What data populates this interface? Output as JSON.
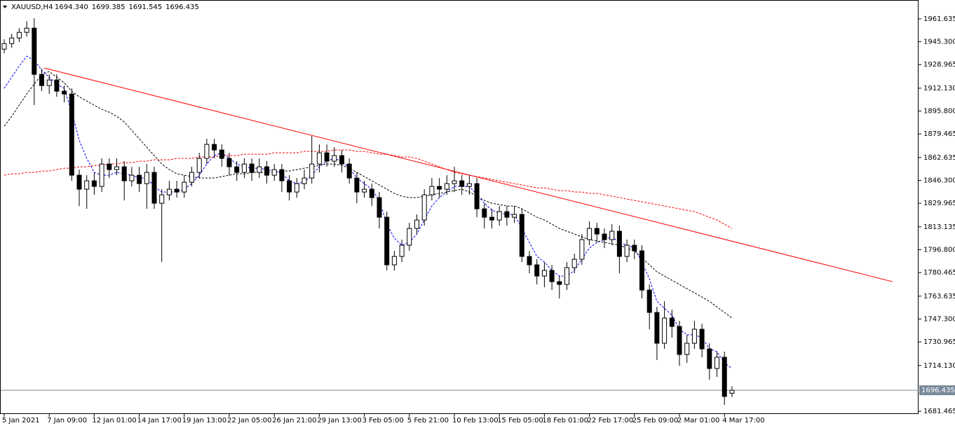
{
  "chart_data": {
    "type": "candlestick",
    "title": "XAUUSD,H4",
    "header_values": [
      "1694.340",
      "1699.385",
      "1691.545",
      "1696.435"
    ],
    "categories": [
      "5 Jan 2021",
      null,
      null,
      null,
      null,
      null,
      "7 Jan 09:00",
      null,
      null,
      null,
      null,
      null,
      "12 Jan 01:00",
      null,
      null,
      null,
      null,
      null,
      "14 Jan 17:00",
      null,
      null,
      null,
      null,
      null,
      "19 Jan 13:00",
      null,
      null,
      null,
      null,
      null,
      "22 Jan 05:00",
      null,
      null,
      null,
      null,
      null,
      "26 Jan 21:00",
      null,
      null,
      null,
      null,
      null,
      "29 Jan 13:00",
      null,
      null,
      null,
      null,
      null,
      "3 Feb 05:00",
      null,
      null,
      null,
      null,
      null,
      "5 Feb 21:00",
      null,
      null,
      null,
      null,
      null,
      "10 Feb 13:00",
      null,
      null,
      null,
      null,
      null,
      "15 Feb 05:00",
      null,
      null,
      null,
      null,
      null,
      "18 Feb 01:00",
      null,
      null,
      null,
      null,
      null,
      "22 Feb 17:00",
      null,
      null,
      null,
      null,
      null,
      "25 Feb 09:00",
      null,
      null,
      null,
      null,
      null,
      "2 Mar 01:00",
      null,
      null,
      null,
      null,
      null,
      "4 Mar 17:00",
      null
    ],
    "open": [
      1940,
      1944,
      1948,
      1952,
      1955,
      1922,
      1914,
      1918,
      1910,
      1908,
      1850,
      1840,
      1846,
      1842,
      1858,
      1854,
      1856,
      1846,
      1850,
      1844,
      1852,
      1830,
      1836,
      1840,
      1838,
      1845,
      1852,
      1862,
      1872,
      1868,
      1862,
      1856,
      1852,
      1858,
      1852,
      1856,
      1850,
      1854,
      1846,
      1838,
      1844,
      1848,
      1858,
      1866,
      1860,
      1864,
      1858,
      1848,
      1838,
      1840,
      1834,
      1820,
      1786,
      1792,
      1800,
      1812,
      1818,
      1836,
      1842,
      1840,
      1844,
      1846,
      1842,
      1844,
      1826,
      1820,
      1818,
      1824,
      1820,
      1822,
      1792,
      1786,
      1778,
      1782,
      1774,
      1772,
      1784,
      1790,
      1804,
      1812,
      1808,
      1804,
      1810,
      1792,
      1800,
      1796,
      1768,
      1752,
      1730,
      1748,
      1742,
      1722,
      1730,
      1740,
      1726,
      1712,
      1720,
      1694.34
    ],
    "high": [
      1947,
      1951,
      1955,
      1960,
      1962,
      1926,
      1922,
      1922,
      1914,
      1912,
      1854,
      1850,
      1852,
      1862,
      1862,
      1862,
      1860,
      1856,
      1856,
      1858,
      1856,
      1840,
      1846,
      1846,
      1850,
      1856,
      1866,
      1876,
      1876,
      1872,
      1866,
      1860,
      1862,
      1862,
      1862,
      1860,
      1858,
      1858,
      1850,
      1848,
      1854,
      1878,
      1872,
      1872,
      1870,
      1868,
      1862,
      1852,
      1846,
      1844,
      1838,
      1824,
      1796,
      1804,
      1816,
      1822,
      1840,
      1848,
      1848,
      1850,
      1856,
      1850,
      1850,
      1848,
      1830,
      1826,
      1828,
      1828,
      1828,
      1826,
      1796,
      1790,
      1788,
      1786,
      1778,
      1788,
      1794,
      1808,
      1817,
      1816,
      1812,
      1815,
      1814,
      1804,
      1804,
      1800,
      1772,
      1756,
      1760,
      1754,
      1746,
      1736,
      1746,
      1744,
      1730,
      1724,
      1724,
      1699.385
    ],
    "low": [
      1937,
      1941,
      1945,
      1949,
      1900,
      1910,
      1908,
      1906,
      1902,
      1846,
      1828,
      1826,
      1836,
      1838,
      1848,
      1850,
      1832,
      1842,
      1838,
      1826,
      1826,
      1788,
      1832,
      1834,
      1834,
      1842,
      1848,
      1858,
      1862,
      1856,
      1850,
      1846,
      1848,
      1846,
      1848,
      1844,
      1846,
      1838,
      1832,
      1834,
      1840,
      1844,
      1852,
      1856,
      1856,
      1852,
      1844,
      1830,
      1834,
      1828,
      1812,
      1782,
      1782,
      1788,
      1796,
      1808,
      1814,
      1832,
      1834,
      1836,
      1838,
      1836,
      1836,
      1820,
      1812,
      1812,
      1814,
      1814,
      1816,
      1788,
      1780,
      1772,
      1770,
      1768,
      1762,
      1768,
      1780,
      1786,
      1800,
      1802,
      1798,
      1800,
      1780,
      1788,
      1790,
      1762,
      1740,
      1718,
      1726,
      1734,
      1714,
      1716,
      1726,
      1720,
      1704,
      1706,
      1686,
      1691.545
    ],
    "close": [
      1944,
      1948,
      1952,
      1955,
      1922,
      1914,
      1918,
      1910,
      1908,
      1850,
      1840,
      1846,
      1842,
      1858,
      1854,
      1856,
      1846,
      1850,
      1844,
      1852,
      1830,
      1836,
      1840,
      1838,
      1845,
      1852,
      1862,
      1872,
      1868,
      1862,
      1856,
      1852,
      1858,
      1852,
      1856,
      1850,
      1854,
      1846,
      1838,
      1844,
      1848,
      1858,
      1866,
      1860,
      1864,
      1858,
      1848,
      1838,
      1840,
      1834,
      1820,
      1786,
      1792,
      1800,
      1812,
      1818,
      1836,
      1842,
      1840,
      1844,
      1846,
      1842,
      1844,
      1826,
      1820,
      1818,
      1824,
      1820,
      1822,
      1792,
      1786,
      1778,
      1782,
      1774,
      1772,
      1784,
      1790,
      1804,
      1812,
      1808,
      1804,
      1810,
      1792,
      1800,
      1796,
      1768,
      1752,
      1730,
      1748,
      1742,
      1722,
      1730,
      1740,
      1726,
      1712,
      1720,
      1692,
      1696.435
    ],
    "lines": [
      {
        "color": "#0000ff",
        "values": [
          1912,
          1920,
          1928,
          1935,
          1932,
          1925,
          1920,
          1915,
          1912,
          1895,
          1875,
          1862,
          1852,
          1850,
          1850,
          1852,
          1851,
          1850,
          1848,
          1848,
          1842,
          1838,
          1838,
          1838,
          1840,
          1844,
          1850,
          1858,
          1864,
          1866,
          1862,
          1858,
          1856,
          1855,
          1855,
          1854,
          1853,
          1851,
          1846,
          1844,
          1845,
          1850,
          1856,
          1860,
          1862,
          1860,
          1855,
          1848,
          1844,
          1840,
          1832,
          1815,
          1805,
          1800,
          1802,
          1808,
          1818,
          1828,
          1834,
          1838,
          1842,
          1842,
          1842,
          1836,
          1830,
          1825,
          1823,
          1822,
          1822,
          1812,
          1802,
          1792,
          1788,
          1782,
          1778,
          1778,
          1782,
          1790,
          1798,
          1802,
          1804,
          1806,
          1802,
          1800,
          1798,
          1788,
          1776,
          1760,
          1755,
          1750,
          1740,
          1736,
          1736,
          1734,
          1726,
          1724,
          1716,
          1712
        ]
      },
      {
        "color": "#000000",
        "values": [
          1885,
          1892,
          1900,
          1908,
          1915,
          1922,
          1924,
          1920,
          1916,
          1910,
          1906,
          1903,
          1900,
          1897,
          1895,
          1892,
          1888,
          1882,
          1876,
          1870,
          1864,
          1858,
          1854,
          1851,
          1850,
          1849,
          1848,
          1848,
          1848,
          1849,
          1850,
          1851,
          1851,
          1852,
          1852,
          1852,
          1852,
          1853,
          1853,
          1854,
          1855,
          1856,
          1857,
          1858,
          1858,
          1857,
          1855,
          1852,
          1849,
          1846,
          1843,
          1840,
          1837,
          1835,
          1834,
          1834,
          1835,
          1836,
          1837,
          1838,
          1839,
          1840,
          1838,
          1835,
          1832,
          1830,
          1829,
          1828,
          1828,
          1826,
          1823,
          1820,
          1818,
          1815,
          1812,
          1810,
          1808,
          1806,
          1804,
          1803,
          1802,
          1801,
          1800,
          1798,
          1796,
          1791,
          1786,
          1781,
          1778,
          1775,
          1772,
          1769,
          1766,
          1763,
          1760,
          1756,
          1752,
          1748
        ]
      },
      {
        "color": "#ff0000",
        "values": [
          1850,
          1851,
          1851,
          1852,
          1852,
          1853,
          1853,
          1854,
          1855,
          1855,
          1856,
          1856,
          1857,
          1857,
          1858,
          1858,
          1859,
          1859,
          1860,
          1860,
          1861,
          1861,
          1861,
          1862,
          1862,
          1862,
          1863,
          1863,
          1863,
          1864,
          1864,
          1864,
          1865,
          1865,
          1865,
          1865,
          1866,
          1866,
          1866,
          1866,
          1867,
          1867,
          1867,
          1867,
          1868,
          1868,
          1868,
          1867,
          1867,
          1866,
          1865,
          1865,
          1864,
          1863,
          1863,
          1862,
          1860,
          1858,
          1856,
          1854,
          1852,
          1851,
          1850,
          1849,
          1848,
          1847,
          1846,
          1845,
          1844,
          1843,
          1842,
          1841,
          1841,
          1840,
          1839,
          1839,
          1838,
          1838,
          1837,
          1837,
          1836,
          1835,
          1834,
          1833,
          1832,
          1831,
          1830,
          1829,
          1828,
          1827,
          1826,
          1825,
          1824,
          1822,
          1820,
          1818,
          1815,
          1812
        ]
      }
    ],
    "trendline": {
      "color": "#ff0000",
      "start": [
        5.3,
        1926.6
      ],
      "end": [
        118.4,
        1774
      ]
    },
    "last_price": {
      "value": 1696.435,
      "label": "1696.435"
    },
    "ylim": [
      1679.5,
      1975.1
    ],
    "yticks": [
      1961.635,
      {
        "value": 1945.3,
        "label": "1945.300"
      },
      1928.965,
      {
        "value": 1912.13,
        "label": "1912.130"
      },
      {
        "value": 1895.8,
        "label": "1895.800"
      },
      1879.465,
      1862.635,
      {
        "value": 1846.3,
        "label": "1846.300"
      },
      1829.965,
      1813.135,
      {
        "value": 1796.8,
        "label": "1796.800"
      },
      1780.465,
      1763.635,
      {
        "value": 1747.3,
        "label": "1747.300"
      },
      1730.965,
      {
        "value": 1714.13,
        "label": "1714.130"
      },
      1681.465
    ]
  }
}
